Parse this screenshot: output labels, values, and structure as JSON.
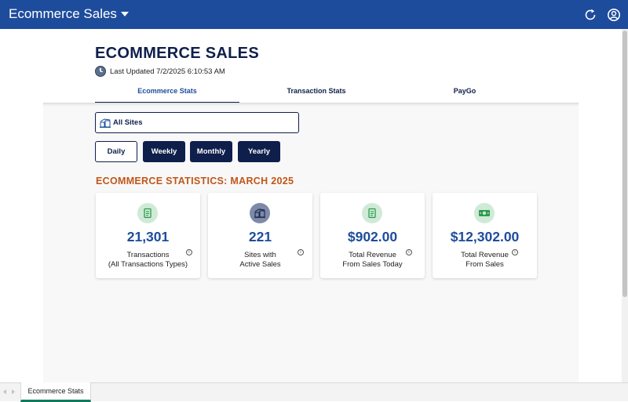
{
  "app": {
    "title": "Ecommerce Sales"
  },
  "header": {
    "title": "ECOMMERCE SALES",
    "last_updated": "Last Updated 7/2/2025 6:10:53 AM"
  },
  "tabs": [
    {
      "label": "Ecommerce Stats",
      "active": true
    },
    {
      "label": "Transaction Stats",
      "active": false
    },
    {
      "label": "PayGo",
      "active": false
    }
  ],
  "filters": {
    "site_select": "All Sites",
    "periods": [
      "Daily",
      "Weekly",
      "Monthly",
      "Yearly"
    ],
    "selected_period": "Daily"
  },
  "section": {
    "title": "ECOMMERCE STATISTICS: MARCH 2025"
  },
  "cards": [
    {
      "icon": "receipt-icon",
      "value": "21,301",
      "label_line1": "Transactions",
      "label_line2": "(All Transactions Types)"
    },
    {
      "icon": "sites-icon",
      "value": "221",
      "label_line1": "Sites with",
      "label_line2": "Active Sales"
    },
    {
      "icon": "receipt-icon",
      "value": "$902.00",
      "label_line1": "Total Revenue",
      "label_line2": "From Sales Today"
    },
    {
      "icon": "cash-icon",
      "value": "$12,302.00",
      "label_line1": "Total Revenue",
      "label_line2": "From Sales"
    }
  ],
  "bottom_tabs": [
    {
      "label": "Ecommerce Stats",
      "active": true
    }
  ],
  "colors": {
    "topbar": "#1e4c9c",
    "navy": "#0f1f4b",
    "value_blue": "#1e4c9c",
    "section_orange": "#c0561a",
    "icon_green_bg": "#cfead6",
    "sheet_tab_accent": "#117a5d"
  }
}
